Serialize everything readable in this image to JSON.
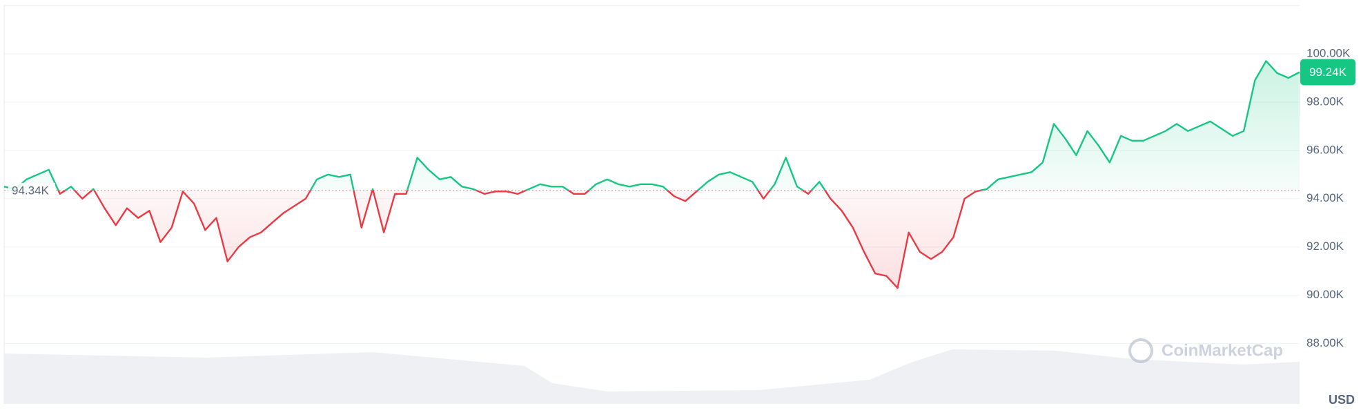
{
  "chart_data": {
    "type": "line",
    "values": [
      94500,
      94400,
      94800,
      95000,
      95200,
      94200,
      94500,
      94000,
      94400,
      93600,
      92900,
      93600,
      93200,
      93500,
      92200,
      92800,
      94300,
      93800,
      92700,
      93200,
      91400,
      92000,
      92400,
      92600,
      93000,
      93400,
      93700,
      94000,
      94800,
      95000,
      94900,
      95000,
      92800,
      94400,
      92600,
      94200,
      94200,
      95700,
      95200,
      94800,
      94900,
      94500,
      94400,
      94200,
      94300,
      94300,
      94200,
      94400,
      94600,
      94500,
      94500,
      94200,
      94200,
      94600,
      94800,
      94600,
      94500,
      94600,
      94600,
      94500,
      94100,
      93900,
      94300,
      94700,
      95000,
      95100,
      94900,
      94700,
      94000,
      94600,
      95700,
      94500,
      94200,
      94700,
      94000,
      93500,
      92800,
      91800,
      90900,
      90800,
      90300,
      92600,
      91800,
      91500,
      91800,
      92400,
      94000,
      94300,
      94400,
      94800,
      94900,
      95000,
      95100,
      95500,
      97100,
      96500,
      95800,
      96800,
      96200,
      95500,
      96600,
      96400,
      96400,
      96600,
      96800,
      97100,
      96800,
      97000,
      97200,
      96900,
      96600,
      96800,
      98900,
      99700,
      99200,
      99000,
      99240
    ],
    "up_color": "#16c784",
    "down_color": "#ea3943",
    "baseline": {
      "value": 94340,
      "label": "94.34K"
    },
    "last_price": {
      "value": 99240,
      "label": "99.24K"
    },
    "ylim": [
      85500,
      102000
    ],
    "yticks": [
      {
        "value": 88000,
        "label": "88.00K"
      },
      {
        "value": 90000,
        "label": "90.00K"
      },
      {
        "value": 92000,
        "label": "92.00K"
      },
      {
        "value": 94000,
        "label": "94.00K"
      },
      {
        "value": 96000,
        "label": "96.00K"
      },
      {
        "value": 98000,
        "label": "98.00K"
      },
      {
        "value": 100000,
        "label": "100.00K"
      }
    ],
    "grid": true,
    "y_axis_label": "USD",
    "watermark": "CoinMarketCap"
  }
}
